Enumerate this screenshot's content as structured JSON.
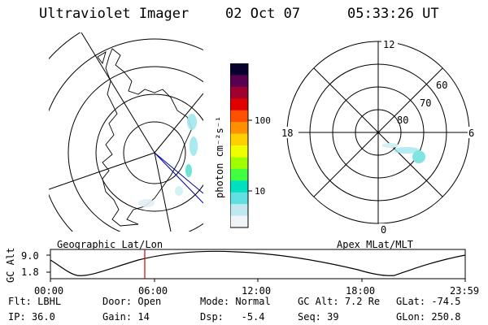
{
  "header": {
    "instrument": "Ultraviolet Imager",
    "date": "02 Oct 07",
    "time": "05:33:26 UT"
  },
  "left_map": {
    "label": "Geographic Lat/Lon"
  },
  "colorbar": {
    "unit_label": "photon cm⁻²s⁻¹",
    "ticks": [
      "100",
      "10"
    ],
    "colors": [
      "#0a0030",
      "#5a0050",
      "#a00030",
      "#e00000",
      "#ff5000",
      "#ff9000",
      "#ffd000",
      "#f0ff00",
      "#a0ff00",
      "#40ff40",
      "#00e0c0",
      "#60e0e0",
      "#c0e8f0",
      "#f0f4f8"
    ]
  },
  "right_map": {
    "label": "Apex MLat/MLT",
    "mlt_labels": {
      "top": "12",
      "left": "18",
      "right": "6",
      "bottom": "0"
    },
    "mlat_labels": [
      "60",
      "70",
      "80"
    ]
  },
  "altitude_plot": {
    "ylabel": "GC Alt",
    "yticks": [
      "9.0",
      "1.8"
    ],
    "xticks": [
      "00:00",
      "06:00",
      "12:00",
      "18:00",
      "23:59"
    ]
  },
  "info": {
    "flt": {
      "label": "Flt:",
      "value": "LBHL"
    },
    "ip": {
      "label": "IP:",
      "value": "36.0"
    },
    "door": {
      "label": "Door:",
      "value": "Open"
    },
    "gain": {
      "label": "Gain:",
      "value": "14"
    },
    "mode": {
      "label": "Mode:",
      "value": "Normal"
    },
    "dsp": {
      "label": "Dsp:",
      "value": "-5.4"
    },
    "gc_alt": {
      "label": "GC Alt:",
      "value": "7.2 Re"
    },
    "seq": {
      "label": "Seq:",
      "value": "39"
    },
    "glat": {
      "label": "GLat:",
      "value": "-74.5"
    },
    "glon": {
      "label": "GLon:",
      "value": "250.8"
    }
  }
}
